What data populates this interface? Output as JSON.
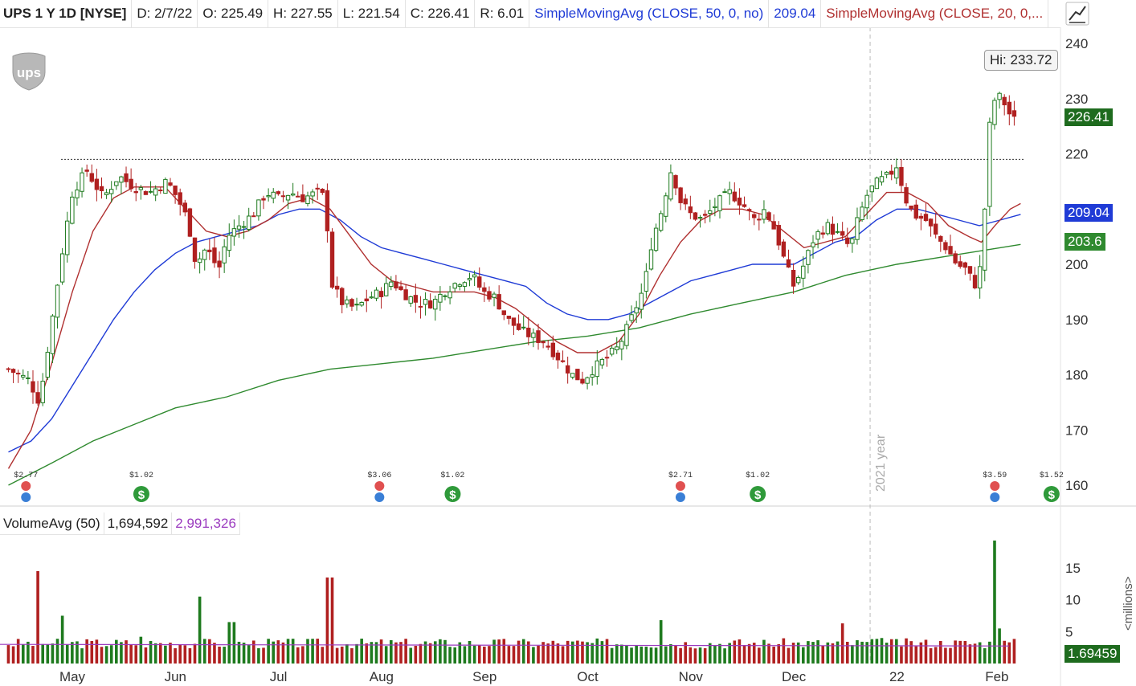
{
  "header": {
    "symbol": "UPS 1 Y 1D [NYSE]",
    "date": "D: 2/7/22",
    "open": "O: 225.49",
    "high": "H: 227.55",
    "low": "L: 221.54",
    "close": "C: 226.41",
    "range": "R: 6.01",
    "sma50_label": "SimpleMovingAvg (CLOSE, 50, 0, no)",
    "sma50_value": "209.04",
    "sma20_label": "SimpleMovingAvg (CLOSE, 20, 0,..."
  },
  "volume_header": {
    "label": "VolumeAvg (50)",
    "volume": "1,694,592",
    "avg": "2,991,326"
  },
  "tags": {
    "price": "226.41",
    "sma50": "209.04",
    "sma200": "203.6",
    "volume": "1.69459",
    "hi": "Hi: 233.72",
    "year": "2021 year",
    "millions": "<millions>"
  },
  "icons": {
    "logo": "ups-logo",
    "tool": "drawing-tool-icon",
    "earnings": "earnings-icon",
    "dividend": "dividend-icon"
  },
  "colors": {
    "up": "#1e7a1e",
    "down": "#b02020",
    "sma20": "#b03030",
    "sma50": "#1f3bd6",
    "sma200": "#2f8a2f",
    "vol_avg": "#9b3bbf"
  },
  "events": [
    {
      "type": "earnings",
      "label": "$2.77",
      "month_pos": -0.45
    },
    {
      "type": "dividend",
      "label": "$1.02",
      "month_pos": 0.67
    },
    {
      "type": "earnings",
      "label": "$3.06",
      "month_pos": 2.98
    },
    {
      "type": "dividend",
      "label": "$1.02",
      "month_pos": 3.69
    },
    {
      "type": "earnings",
      "label": "$2.71",
      "month_pos": 5.9
    },
    {
      "type": "dividend",
      "label": "$1.02",
      "month_pos": 6.65
    },
    {
      "type": "earnings",
      "label": "$3.59",
      "month_pos": 8.95
    },
    {
      "type": "dividend",
      "label": "$1.52",
      "month_pos": 9.5
    }
  ],
  "chart_data": {
    "type": "candlestick",
    "ylim": [
      156,
      245
    ],
    "yticks": [
      160,
      170,
      180,
      190,
      200,
      210,
      220,
      230,
      240
    ],
    "x_labels": [
      "May",
      "Jun",
      "Jul",
      "Aug",
      "Sep",
      "Oct",
      "Nov",
      "Dec",
      "22",
      "Feb"
    ],
    "x_label_month_pos": [
      0,
      1,
      2,
      3,
      4,
      5,
      6,
      7,
      8,
      8.97
    ],
    "resistance_level": 219,
    "year_marker_month_pos": 7.74,
    "price_path": [
      [
        -0.62,
        181
      ],
      [
        -0.42,
        179
      ],
      [
        -0.32,
        175
      ],
      [
        -0.22,
        187
      ],
      [
        -0.1,
        202
      ],
      [
        0.0,
        213
      ],
      [
        0.14,
        217
      ],
      [
        0.3,
        212
      ],
      [
        0.45,
        216
      ],
      [
        0.6,
        214
      ],
      [
        0.75,
        213
      ],
      [
        0.92,
        215
      ],
      [
        1.02,
        212
      ],
      [
        1.12,
        208
      ],
      [
        1.2,
        200
      ],
      [
        1.3,
        203
      ],
      [
        1.42,
        199
      ],
      [
        1.5,
        205
      ],
      [
        1.62,
        207
      ],
      [
        1.75,
        209
      ],
      [
        1.88,
        213
      ],
      [
        2.0,
        212
      ],
      [
        2.12,
        213
      ],
      [
        2.24,
        212
      ],
      [
        2.38,
        213
      ],
      [
        2.46,
        212
      ],
      [
        2.5,
        197
      ],
      [
        2.62,
        193
      ],
      [
        2.75,
        192
      ],
      [
        2.88,
        194
      ],
      [
        3.0,
        195
      ],
      [
        3.1,
        197
      ],
      [
        3.2,
        195
      ],
      [
        3.35,
        193
      ],
      [
        3.5,
        193
      ],
      [
        3.6,
        195
      ],
      [
        3.75,
        197
      ],
      [
        3.88,
        198
      ],
      [
        3.98,
        195
      ],
      [
        4.1,
        194
      ],
      [
        4.22,
        190
      ],
      [
        4.35,
        188
      ],
      [
        4.45,
        187
      ],
      [
        4.58,
        186
      ],
      [
        4.72,
        183
      ],
      [
        4.85,
        180
      ],
      [
        4.95,
        179
      ],
      [
        5.05,
        181
      ],
      [
        5.18,
        183
      ],
      [
        5.3,
        185
      ],
      [
        5.42,
        190
      ],
      [
        5.55,
        196
      ],
      [
        5.62,
        204
      ],
      [
        5.72,
        210
      ],
      [
        5.82,
        218
      ],
      [
        5.88,
        212
      ],
      [
        6.0,
        209
      ],
      [
        6.12,
        208
      ],
      [
        6.25,
        211
      ],
      [
        6.38,
        213
      ],
      [
        6.5,
        211
      ],
      [
        6.62,
        208
      ],
      [
        6.72,
        210
      ],
      [
        6.82,
        206
      ],
      [
        6.92,
        200
      ],
      [
        7.0,
        196
      ],
      [
        7.1,
        200
      ],
      [
        7.2,
        205
      ],
      [
        7.32,
        207
      ],
      [
        7.45,
        205
      ],
      [
        7.55,
        203
      ],
      [
        7.62,
        208
      ],
      [
        7.72,
        213
      ],
      [
        7.82,
        215
      ],
      [
        7.92,
        216
      ],
      [
        8.0,
        218
      ],
      [
        8.08,
        212
      ],
      [
        8.16,
        209
      ],
      [
        8.28,
        208
      ],
      [
        8.38,
        205
      ],
      [
        8.48,
        203
      ],
      [
        8.58,
        200
      ],
      [
        8.68,
        199
      ],
      [
        8.75,
        196
      ],
      [
        8.82,
        200
      ],
      [
        8.9,
        225
      ],
      [
        8.96,
        231
      ],
      [
        9.05,
        229
      ],
      [
        9.12,
        226
      ],
      [
        9.18,
        226.41
      ]
    ],
    "sma20_path": [
      [
        -0.62,
        163
      ],
      [
        -0.4,
        170
      ],
      [
        -0.2,
        182
      ],
      [
        0.0,
        195
      ],
      [
        0.2,
        206
      ],
      [
        0.4,
        212
      ],
      [
        0.6,
        214
      ],
      [
        0.9,
        214
      ],
      [
        1.1,
        210
      ],
      [
        1.3,
        206
      ],
      [
        1.5,
        205
      ],
      [
        1.7,
        206
      ],
      [
        1.9,
        208
      ],
      [
        2.1,
        211
      ],
      [
        2.3,
        212
      ],
      [
        2.5,
        210
      ],
      [
        2.7,
        205
      ],
      [
        2.9,
        200
      ],
      [
        3.1,
        197
      ],
      [
        3.3,
        196
      ],
      [
        3.5,
        195
      ],
      [
        3.7,
        195
      ],
      [
        3.9,
        195
      ],
      [
        4.1,
        194
      ],
      [
        4.3,
        192
      ],
      [
        4.5,
        189
      ],
      [
        4.7,
        186
      ],
      [
        4.9,
        184
      ],
      [
        5.1,
        184
      ],
      [
        5.3,
        186
      ],
      [
        5.5,
        191
      ],
      [
        5.7,
        198
      ],
      [
        5.9,
        204
      ],
      [
        6.1,
        208
      ],
      [
        6.3,
        210
      ],
      [
        6.5,
        210
      ],
      [
        6.7,
        209
      ],
      [
        6.9,
        206
      ],
      [
        7.1,
        203
      ],
      [
        7.3,
        204
      ],
      [
        7.5,
        205
      ],
      [
        7.7,
        209
      ],
      [
        7.9,
        213
      ],
      [
        8.1,
        213
      ],
      [
        8.3,
        211
      ],
      [
        8.5,
        207
      ],
      [
        8.7,
        205
      ],
      [
        8.82,
        204
      ],
      [
        8.95,
        207
      ],
      [
        9.1,
        210
      ],
      [
        9.2,
        211
      ]
    ],
    "sma50_path": [
      [
        -0.62,
        166
      ],
      [
        -0.4,
        168
      ],
      [
        -0.2,
        172
      ],
      [
        0.0,
        178
      ],
      [
        0.2,
        184
      ],
      [
        0.4,
        190
      ],
      [
        0.6,
        195
      ],
      [
        0.8,
        199
      ],
      [
        1.0,
        202
      ],
      [
        1.2,
        204
      ],
      [
        1.4,
        205
      ],
      [
        1.6,
        206
      ],
      [
        1.8,
        207
      ],
      [
        2.0,
        209
      ],
      [
        2.2,
        210
      ],
      [
        2.4,
        210
      ],
      [
        2.6,
        208
      ],
      [
        2.8,
        205
      ],
      [
        3.0,
        203
      ],
      [
        3.2,
        202
      ],
      [
        3.4,
        201
      ],
      [
        3.6,
        200
      ],
      [
        3.8,
        199
      ],
      [
        4.0,
        198
      ],
      [
        4.2,
        197
      ],
      [
        4.4,
        196
      ],
      [
        4.6,
        193
      ],
      [
        4.8,
        191
      ],
      [
        5.0,
        190
      ],
      [
        5.2,
        190
      ],
      [
        5.4,
        191
      ],
      [
        5.6,
        193
      ],
      [
        5.8,
        195
      ],
      [
        6.0,
        197
      ],
      [
        6.2,
        198
      ],
      [
        6.4,
        199
      ],
      [
        6.6,
        200
      ],
      [
        6.8,
        200
      ],
      [
        7.0,
        200
      ],
      [
        7.2,
        202
      ],
      [
        7.4,
        204
      ],
      [
        7.6,
        205
      ],
      [
        7.8,
        208
      ],
      [
        8.0,
        210
      ],
      [
        8.2,
        210
      ],
      [
        8.4,
        209
      ],
      [
        8.6,
        208
      ],
      [
        8.8,
        207
      ],
      [
        9.0,
        208
      ],
      [
        9.2,
        209.04
      ]
    ],
    "sma200_path": [
      [
        -0.62,
        160
      ],
      [
        -0.2,
        164
      ],
      [
        0.2,
        168
      ],
      [
        0.6,
        171
      ],
      [
        1.0,
        174
      ],
      [
        1.5,
        176
      ],
      [
        2.0,
        179
      ],
      [
        2.5,
        181
      ],
      [
        3.0,
        182
      ],
      [
        3.5,
        183
      ],
      [
        4.0,
        184.5
      ],
      [
        4.5,
        186
      ],
      [
        5.0,
        187
      ],
      [
        5.5,
        188.5
      ],
      [
        6.0,
        191
      ],
      [
        6.5,
        193
      ],
      [
        7.0,
        195
      ],
      [
        7.5,
        198
      ],
      [
        8.0,
        200
      ],
      [
        8.5,
        201.5
      ],
      [
        9.0,
        203
      ],
      [
        9.2,
        203.6
      ]
    ],
    "volume_ylim": [
      0,
      20
    ],
    "volume_ticks": [
      5,
      10,
      15
    ],
    "volume_spikes": [
      [
        -0.34,
        14.5
      ],
      [
        -0.1,
        7.5
      ],
      [
        0.65,
        4.2
      ],
      [
        1.22,
        10.5
      ],
      [
        1.55,
        6.5
      ],
      [
        2.5,
        13.5
      ],
      [
        5.7,
        6.8
      ],
      [
        7.48,
        6.3
      ],
      [
        7.85,
        4.0
      ],
      [
        8.93,
        19.3
      ],
      [
        9.0,
        5.5
      ]
    ],
    "volume_base": 3.0,
    "volume_avg": 3.0
  }
}
